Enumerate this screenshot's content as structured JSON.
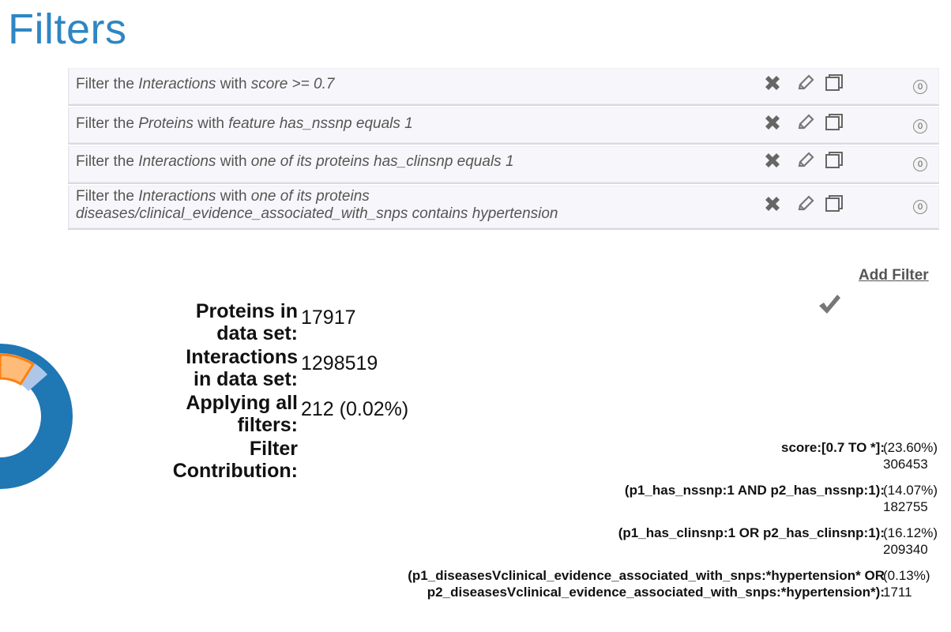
{
  "title": "Filters",
  "filters": [
    {
      "prefix": "Filter the ",
      "entity": "Interactions",
      "mid": " with ",
      "criteria_line1": "score >= 0.7",
      "criteria_line2": "",
      "count": "0"
    },
    {
      "prefix": "Filter the ",
      "entity": "Proteins",
      "mid": " with ",
      "criteria_line1": "feature has_nssnp equals 1",
      "criteria_line2": "",
      "count": "0"
    },
    {
      "prefix": "Filter the ",
      "entity": "Interactions",
      "mid": " with ",
      "criteria_line1": "one of its proteins has_clinsnp equals 1",
      "criteria_line2": "",
      "count": "0"
    },
    {
      "prefix": "Filter the ",
      "entity": "Interactions",
      "mid": " with ",
      "criteria_line1": "one of its proteins",
      "criteria_line2": "diseases/clinical_evidence_associated_with_snps contains hypertension",
      "count": "0"
    }
  ],
  "icons": {
    "delete": "close-x-icon",
    "edit": "pencil-icon",
    "copy": "copy-icon",
    "confirm": "checkmark-icon"
  },
  "add_filter_label": "Add Filter",
  "stats": {
    "proteins_label_1": "Proteins in",
    "proteins_label_2": "data set:",
    "proteins_value": "17917",
    "interactions_label_1": "Interactions",
    "interactions_label_2": "in data set:",
    "interactions_value": "1298519",
    "applying_label_1": "Applying all",
    "applying_label_2": "filters:",
    "applying_value": "212 (0.02%)",
    "contribution_label_1": "Filter",
    "contribution_label_2": "Contribution:"
  },
  "contributions": [
    {
      "query_line1": "score:[0.7 TO *]:",
      "query_line2": "",
      "percent": "(23.60%)",
      "count": "306453"
    },
    {
      "query_line1": "(p1_has_nssnp:1 AND p2_has_nssnp:1):",
      "query_line2": "",
      "percent": "(14.07%)",
      "count": "182755"
    },
    {
      "query_line1": "(p1_has_clinsnp:1 OR p2_has_clinsnp:1):",
      "query_line2": "",
      "percent": "(16.12%)",
      "count": "209340"
    },
    {
      "query_line1": "(p1_diseasesVclinical_evidence_associated_with_snps:*hypertension* OR",
      "query_line2": "p2_diseasesVclinical_evidence_associated_with_snps:*hypertension*):",
      "percent": "(0.13%)",
      "count": "1711"
    }
  ],
  "colors": {
    "title": "#2f86c3",
    "donut_main": "#1f77b4",
    "donut_light": "#aec7e8",
    "donut_orange": "#ff7f0e",
    "donut_peach": "#ffbb78"
  }
}
